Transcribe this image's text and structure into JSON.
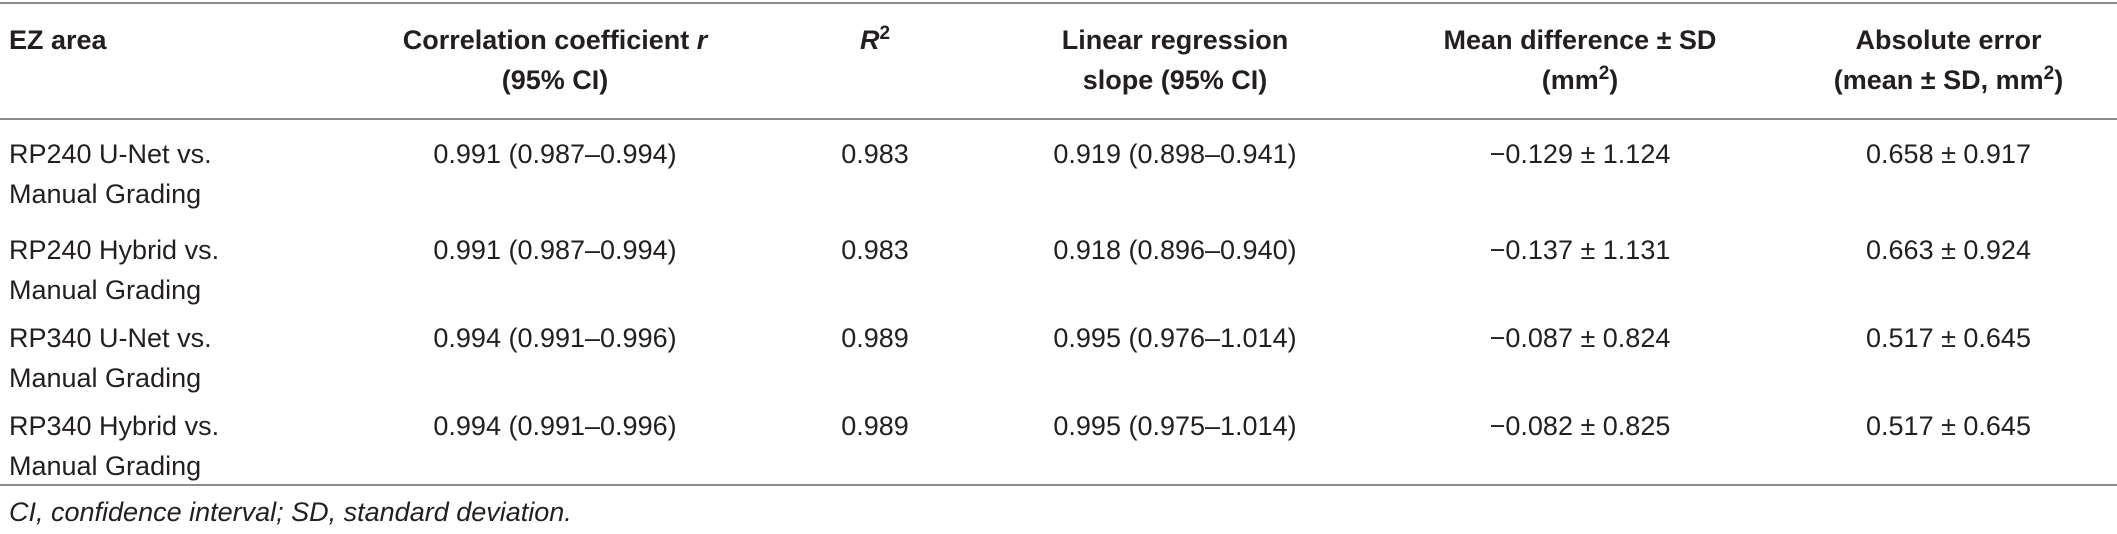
{
  "table": {
    "headers": {
      "ez_area": "EZ area",
      "corr_line1": "Correlation coefficient ",
      "corr_r": "r",
      "corr_line2": "(95% CI)",
      "r2_base": "R",
      "r2_sup": "2",
      "slope_line1": "Linear regression",
      "slope_line2": "slope (95% CI)",
      "meandiff_line1": "Mean difference ± SD",
      "meandiff_line2_pre": "(mm",
      "meandiff_line2_sup": "2",
      "meandiff_line2_post": ")",
      "abserr_line1": "Absolute error",
      "abserr_line2_pre": "(mean ± SD, mm",
      "abserr_line2_sup": "2",
      "abserr_line2_post": ")"
    },
    "rows": [
      {
        "ez_line1": "RP240 U-Net vs.",
        "ez_line2": "Manual Grading",
        "corr": "0.991 (0.987–0.994)",
        "r2": "0.983",
        "slope": "0.919 (0.898–0.941)",
        "meandiff": "−0.129 ± 1.124",
        "abserr": "0.658 ± 0.917"
      },
      {
        "ez_line1": "RP240 Hybrid vs.",
        "ez_line2": "Manual Grading",
        "corr": "0.991 (0.987–0.994)",
        "r2": "0.983",
        "slope": "0.918 (0.896–0.940)",
        "meandiff": "−0.137 ± 1.131",
        "abserr": "0.663 ± 0.924"
      },
      {
        "ez_line1": "RP340 U-Net vs.",
        "ez_line2": "Manual Grading",
        "corr": "0.994 (0.991–0.996)",
        "r2": "0.989",
        "slope": "0.995 (0.976–1.014)",
        "meandiff": "−0.087 ± 0.824",
        "abserr": "0.517 ± 0.645"
      },
      {
        "ez_line1": "RP340 Hybrid vs.",
        "ez_line2": "Manual Grading",
        "corr": "0.994 (0.991–0.996)",
        "r2": "0.989",
        "slope": "0.995 (0.975–1.014)",
        "meandiff": "−0.082 ± 0.825",
        "abserr": "0.517 ± 0.645"
      }
    ]
  },
  "footnote": "CI, confidence interval; SD, standard deviation."
}
